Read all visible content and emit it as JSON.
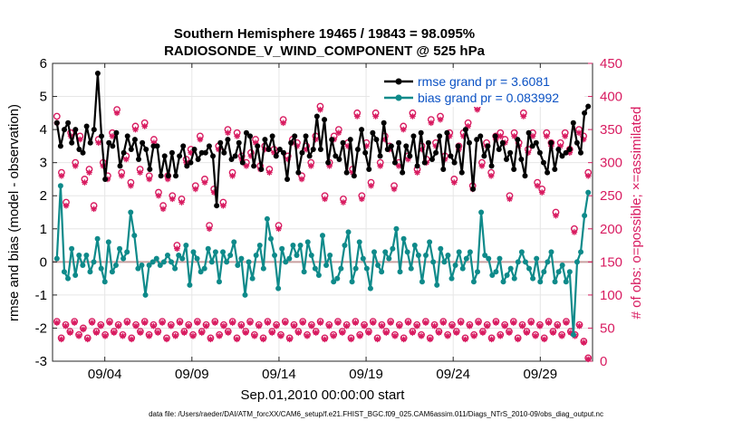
{
  "chart_data": {
    "type": "line",
    "title": "Southern Hemisphere 19465 / 19843 = 98.095%",
    "subtitle": "RADIOSONDE_V_WIND_COMPONENT @ 525 hPa",
    "xlabel": "Sep.01,2010 00:00:00 start",
    "ylabel_left": "rmse and bias (model - observation)",
    "ylabel_right": "# of obs: o=possible; ×=assimilated",
    "footer": "data file: /Users/raeder/DAI/ATM_forcXX/CAM6_setup/f.e21.FHIST_BGC.f09_025.CAM6assim.011/Diags_NTrS_2010-09/obs_diag_output.nc",
    "xlim": [
      1,
      32
    ],
    "ylim_left": [
      -3,
      6
    ],
    "ylim_right": [
      0,
      450
    ],
    "xticks": [
      4,
      9,
      14,
      19,
      24,
      29
    ],
    "xtick_labels": [
      "09/04",
      "09/09",
      "09/14",
      "09/19",
      "09/24",
      "09/29"
    ],
    "yticks_left": [
      "-3",
      "-2",
      "-1",
      "0",
      "1",
      "2",
      "3",
      "4",
      "5",
      "6"
    ],
    "yticks_right": [
      "0",
      "50",
      "100",
      "150",
      "200",
      "250",
      "300",
      "350",
      "400",
      "450"
    ],
    "legend": [
      {
        "name": "rmse grand pr = 3.6081",
        "color": "#000000"
      },
      {
        "name": "bias grand pr = 0.083992",
        "color": "#0e8a8a"
      }
    ],
    "series": [
      {
        "name": "rmse",
        "color": "#000000",
        "values": [
          4.2,
          3.5,
          4.0,
          4.2,
          3.6,
          4.0,
          3.4,
          3.3,
          4.1,
          3.6,
          4.0,
          5.7,
          3.8,
          2.5,
          3.6,
          3.5,
          3.9,
          2.9,
          3.3,
          3.8,
          3.4,
          3.7,
          3.1,
          3.6,
          3.4,
          2.8,
          3.5,
          3.5,
          2.6,
          3.2,
          2.6,
          3.3,
          2.6,
          3.2,
          3.5,
          2.9,
          3.0,
          3.4,
          3.1,
          3.3,
          3.3,
          3.5,
          3.2,
          1.7,
          3.6,
          3.3,
          3.7,
          3.1,
          3.2,
          3.6,
          3.0,
          3.9,
          3.8,
          2.9,
          3.5,
          2.8,
          3.7,
          3.4,
          3.8,
          3.2,
          3.4,
          3.3,
          2.5,
          3.6,
          3.8,
          2.7,
          3.3,
          3.8,
          3.2,
          3.4,
          4.4,
          3.4,
          4.3,
          3.0,
          3.7,
          3.2,
          3.1,
          3.6,
          2.7,
          3.7,
          2.6,
          3.4,
          4.0,
          3.3,
          2.8,
          3.9,
          3.7,
          3.2,
          4.2,
          3.4,
          3.5,
          3.0,
          3.6,
          2.7,
          3.5,
          3.2,
          3.8,
          2.9,
          3.9,
          3.0,
          3.6,
          3.1,
          3.3,
          3.8,
          2.8,
          3.9,
          3.2,
          3.0,
          3.5,
          2.7,
          4.0,
          3.6,
          2.2,
          3.7,
          3.8,
          3.2,
          3.5,
          2.9,
          3.8,
          3.4,
          3.6,
          3.1,
          3.3,
          2.8,
          3.7,
          3.1,
          2.6,
          3.9,
          3.5,
          3.6,
          3.3,
          3.0,
          2.7,
          3.6,
          2.8,
          3.4,
          3.2,
          3.3,
          3.4,
          4.2,
          3.6,
          3.3,
          4.5,
          4.7
        ]
      },
      {
        "name": "bias",
        "color": "#0e8a8a",
        "values": [
          0.1,
          2.3,
          -0.3,
          -0.5,
          0.4,
          -0.4,
          0.2,
          -0.1,
          0.2,
          -0.3,
          0.0,
          0.7,
          -0.2,
          -0.6,
          0.6,
          -0.3,
          -0.1,
          0.4,
          0.1,
          0.3,
          1.5,
          0.8,
          -0.2,
          -0.1,
          -1.0,
          -0.1,
          0.0,
          0.1,
          -0.1,
          0.0,
          0.2,
          0.0,
          -0.2,
          0.2,
          0.1,
          0.5,
          -0.7,
          0.3,
          0.1,
          -0.3,
          -0.2,
          0.4,
          0.0,
          0.3,
          -0.6,
          0.3,
          0.0,
          0.2,
          0.6,
          -0.1,
          0.1,
          -1.0,
          0.0,
          -0.5,
          0.2,
          0.5,
          -0.2,
          1.3,
          0.7,
          0.2,
          -0.8,
          0.4,
          0.0,
          0.1,
          0.5,
          0.2,
          0.5,
          -0.3,
          0.6,
          0.2,
          -0.2,
          -0.4,
          0.8,
          -0.1,
          0.2,
          -0.6,
          -0.5,
          -0.2,
          0.5,
          0.9,
          -0.6,
          -0.2,
          0.6,
          0.1,
          -0.2,
          -0.8,
          0.3,
          -0.1,
          -0.3,
          0.3,
          0.1,
          0.4,
          1.0,
          -0.3,
          0.7,
          0.3,
          -0.2,
          0.5,
          0.2,
          -0.6,
          0.2,
          0.6,
          0.0,
          -0.7,
          0.4,
          0.0,
          0.2,
          -0.5,
          -0.1,
          0.3,
          -0.2,
          0.1,
          0.3,
          -0.6,
          -0.3,
          1.5,
          0.2,
          0.1,
          -0.4,
          -0.3,
          0.1,
          -0.6,
          -0.4,
          -0.2,
          -0.5,
          0.0,
          0.3,
          0.0,
          -0.2,
          -0.5,
          0.1,
          -0.6,
          -0.3,
          0.0,
          0.3,
          -0.6,
          -0.3,
          -0.1,
          -0.6,
          -0.3,
          -2.2,
          0.0,
          0.3,
          1.4,
          2.1
        ]
      },
      {
        "name": "possible",
        "color": "#d81b60",
        "values": [
          370,
          285,
          240,
          345,
          300,
          340,
          275,
          290,
          235,
          335,
          300,
          280,
          345,
          380,
          285,
          310,
          270,
          355,
          290,
          360,
          280,
          335,
          255,
          235,
          280,
          250,
          175,
          245,
          305,
          320,
          265,
          340,
          275,
          205,
          260,
          325,
          240,
          350,
          285,
          345,
          310,
          300,
          315,
          335,
          295,
          325,
          290,
          320,
          205,
          365,
          310,
          335,
          330,
          280,
          325,
          300,
          340,
          385,
          250,
          300,
          340,
          350,
          245,
          330,
          290,
          375,
          250,
          330,
          270,
          375,
          300,
          340,
          325,
          265,
          300,
          355,
          310,
          375,
          290,
          325,
          305,
          365,
          330,
          370,
          310,
          345,
          275,
          325,
          345,
          360,
          265,
          385,
          300,
          330,
          285,
          340,
          345,
          335,
          250,
          345,
          330,
          375,
          320,
          345,
          270,
          260,
          345,
          330,
          225,
          330,
          345,
          320,
          200,
          350,
          340,
          285
        ]
      },
      {
        "name": "assimilated",
        "color": "#d81b60",
        "values": [
          360,
          280,
          235,
          340,
          295,
          335,
          270,
          285,
          230,
          330,
          295,
          275,
          340,
          375,
          280,
          305,
          265,
          350,
          285,
          355,
          275,
          330,
          250,
          230,
          275,
          245,
          170,
          240,
          300,
          315,
          260,
          335,
          270,
          200,
          255,
          320,
          235,
          345,
          280,
          340,
          305,
          295,
          310,
          330,
          290,
          320,
          285,
          315,
          200,
          360,
          305,
          330,
          325,
          275,
          320,
          295,
          335,
          380,
          245,
          295,
          335,
          345,
          240,
          325,
          285,
          370,
          245,
          325,
          265,
          370,
          295,
          335,
          320,
          260,
          295,
          350,
          305,
          370,
          285,
          320,
          300,
          360,
          325,
          365,
          305,
          340,
          270,
          320,
          340,
          355,
          260,
          380,
          295,
          325,
          280,
          335,
          340,
          330,
          245,
          340,
          325,
          370,
          315,
          340,
          265,
          255,
          340,
          325,
          220,
          325,
          340,
          315,
          195,
          345,
          335,
          280
        ]
      },
      {
        "name": "possible-low",
        "color": "#d81b60",
        "values": [
          60,
          35,
          55,
          45,
          60,
          40,
          50,
          35,
          60,
          45,
          55,
          40,
          60,
          45,
          55,
          40,
          60,
          35,
          55,
          45,
          60,
          40,
          55,
          45,
          60,
          35,
          55,
          40,
          60,
          45,
          55,
          40,
          60,
          45,
          55,
          35,
          60,
          40,
          55,
          45,
          60,
          35,
          55,
          45,
          60,
          40,
          55,
          35,
          60,
          45,
          55,
          40,
          60,
          35,
          55,
          45,
          60,
          40,
          55,
          45,
          60,
          35,
          55,
          40,
          60,
          45,
          55,
          35,
          60,
          40,
          55,
          45,
          60,
          35,
          55,
          45,
          60,
          40,
          55,
          35,
          60,
          45,
          55,
          40,
          60,
          35,
          55,
          45,
          60,
          40,
          55,
          45,
          60,
          35,
          55,
          40,
          60,
          45,
          55,
          35,
          60,
          40,
          55,
          45,
          60,
          35,
          55,
          45,
          60,
          40,
          55,
          35,
          60,
          45,
          55,
          40,
          60,
          45,
          40,
          55,
          30,
          5
        ]
      },
      {
        "name": "assimilated-low",
        "color": "#d81b60",
        "values": [
          58,
          33,
          53,
          43,
          58,
          38,
          48,
          33,
          58,
          43,
          53,
          38,
          58,
          43,
          53,
          38,
          58,
          33,
          53,
          43,
          58,
          38,
          53,
          43,
          58,
          33,
          53,
          38,
          58,
          43,
          53,
          38,
          58,
          43,
          53,
          33,
          58,
          38,
          53,
          43,
          58,
          33,
          53,
          43,
          58,
          38,
          53,
          33,
          58,
          43,
          53,
          38,
          58,
          33,
          53,
          43,
          58,
          38,
          53,
          43,
          58,
          33,
          53,
          38,
          58,
          43,
          53,
          33,
          58,
          38,
          53,
          43,
          58,
          33,
          53,
          43,
          58,
          38,
          53,
          33,
          58,
          43,
          53,
          38,
          58,
          33,
          53,
          43,
          58,
          38,
          53,
          43,
          58,
          33,
          53,
          38,
          58,
          43,
          53,
          33,
          58,
          38,
          53,
          43,
          58,
          33,
          53,
          43,
          58,
          38,
          53,
          33,
          58,
          43,
          53,
          38,
          58,
          43,
          38,
          53,
          28,
          3
        ]
      }
    ]
  }
}
